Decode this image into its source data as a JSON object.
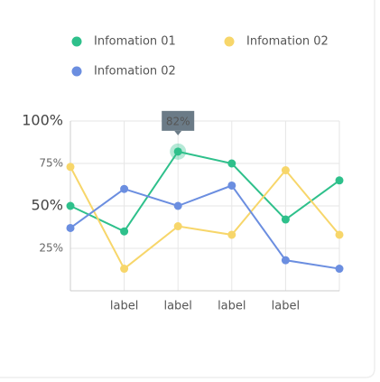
{
  "chart_data": {
    "type": "line",
    "categories": [
      null,
      "label",
      "label",
      "label",
      "label",
      null
    ],
    "series": [
      {
        "name": "Infomation 01",
        "color": "#2ec08b",
        "values": [
          50,
          35,
          82,
          75,
          42,
          65
        ],
        "value_labels": [
          null,
          null,
          "82%",
          null,
          null,
          null
        ]
      },
      {
        "name": "Infomation 02",
        "color": "#f7d66a",
        "values": [
          73,
          13,
          38,
          33,
          71,
          33
        ]
      },
      {
        "name": "Infomation 02",
        "color": "#6b8ee0",
        "values": [
          37,
          60,
          50,
          62,
          18,
          13
        ]
      }
    ],
    "ylim": [
      0,
      100
    ],
    "yticks": [
      {
        "value": 25,
        "label": "25%"
      },
      {
        "value": 50,
        "label": "50%"
      },
      {
        "value": 75,
        "label": "75%"
      },
      {
        "value": 100,
        "label": "100%"
      }
    ],
    "grid": true
  }
}
